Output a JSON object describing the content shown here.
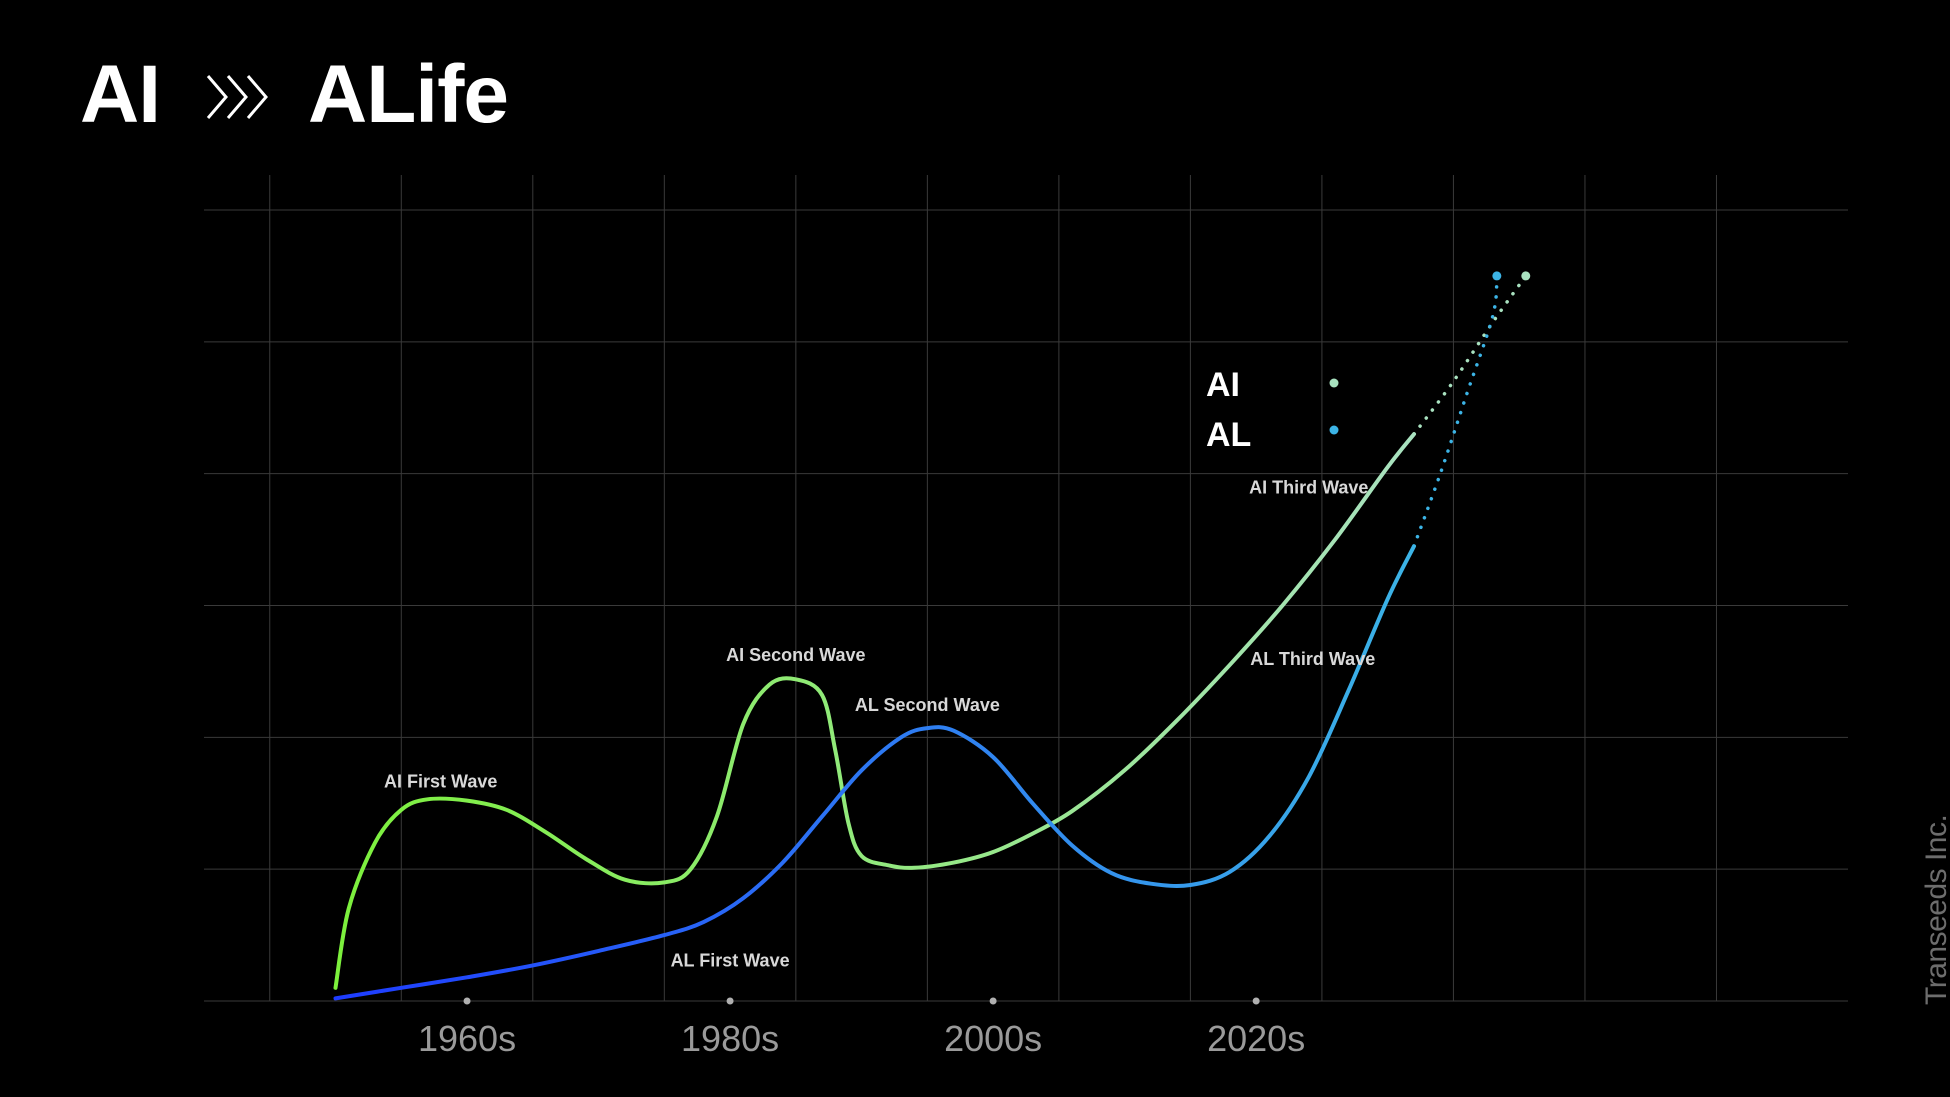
{
  "title": {
    "left": "AI",
    "right": "ALife"
  },
  "brand": "Transeeds Inc.",
  "colors": {
    "background": "#000000",
    "grid": "#3a3a3a",
    "ai_start": "#7cf03c",
    "ai_end": "#a9e2c0",
    "al_start": "#1e3cff",
    "al_end": "#3cb4e6",
    "tick_text": "#9a9a9a",
    "label_text": "#d8d8d8"
  },
  "chart_data": {
    "type": "line",
    "xlabel": "",
    "ylabel": "",
    "xlim": [
      1940,
      2065
    ],
    "ylim": [
      0,
      6
    ],
    "grid": true,
    "y_tick_labels": false,
    "legend_position": "center-right",
    "x_ticks": [
      {
        "value": 1960,
        "label": "1960s"
      },
      {
        "value": 1980,
        "label": "1980s"
      },
      {
        "value": 2000,
        "label": "2000s"
      },
      {
        "value": 2020,
        "label": "2020s"
      }
    ],
    "series": [
      {
        "name": "AI",
        "solid_until": 2032,
        "points": [
          [
            1950,
            0.1
          ],
          [
            1951,
            0.7
          ],
          [
            1953,
            1.2
          ],
          [
            1955,
            1.45
          ],
          [
            1957,
            1.53
          ],
          [
            1960,
            1.52
          ],
          [
            1963,
            1.45
          ],
          [
            1966,
            1.28
          ],
          [
            1969,
            1.08
          ],
          [
            1972,
            0.92
          ],
          [
            1975,
            0.9
          ],
          [
            1977,
            1.0
          ],
          [
            1979,
            1.4
          ],
          [
            1981,
            2.1
          ],
          [
            1983,
            2.4
          ],
          [
            1985,
            2.44
          ],
          [
            1987,
            2.32
          ],
          [
            1988,
            1.9
          ],
          [
            1989,
            1.35
          ],
          [
            1990,
            1.1
          ],
          [
            1992,
            1.03
          ],
          [
            1994,
            1.01
          ],
          [
            1997,
            1.05
          ],
          [
            2000,
            1.13
          ],
          [
            2003,
            1.27
          ],
          [
            2006,
            1.44
          ],
          [
            2010,
            1.75
          ],
          [
            2014,
            2.13
          ],
          [
            2018,
            2.55
          ],
          [
            2022,
            3.0
          ],
          [
            2026,
            3.5
          ],
          [
            2030,
            4.05
          ],
          [
            2032,
            4.3
          ],
          [
            2035,
            4.7
          ],
          [
            2038,
            5.15
          ],
          [
            2040.5,
            5.5
          ]
        ]
      },
      {
        "name": "AL",
        "solid_until": 2032,
        "points": [
          [
            1950,
            0.02
          ],
          [
            1955,
            0.1
          ],
          [
            1960,
            0.18
          ],
          [
            1965,
            0.27
          ],
          [
            1970,
            0.38
          ],
          [
            1975,
            0.5
          ],
          [
            1978,
            0.6
          ],
          [
            1981,
            0.78
          ],
          [
            1984,
            1.05
          ],
          [
            1987,
            1.4
          ],
          [
            1990,
            1.75
          ],
          [
            1993,
            2.0
          ],
          [
            1995,
            2.07
          ],
          [
            1997,
            2.05
          ],
          [
            2000,
            1.85
          ],
          [
            2003,
            1.5
          ],
          [
            2006,
            1.18
          ],
          [
            2009,
            0.97
          ],
          [
            2012,
            0.89
          ],
          [
            2015,
            0.88
          ],
          [
            2018,
            0.98
          ],
          [
            2021,
            1.25
          ],
          [
            2024,
            1.7
          ],
          [
            2027,
            2.35
          ],
          [
            2030,
            3.05
          ],
          [
            2032,
            3.45
          ],
          [
            2034,
            4.0
          ],
          [
            2036,
            4.6
          ],
          [
            2038,
            5.2
          ],
          [
            2038.3,
            5.5
          ]
        ]
      }
    ],
    "annotations": [
      {
        "text": "AI First Wave",
        "x": 1958,
        "y": 1.62
      },
      {
        "text": "AI Second Wave",
        "x": 1985,
        "y": 2.58
      },
      {
        "text": "AL Second Wave",
        "x": 1995,
        "y": 2.2
      },
      {
        "text": "AL First Wave",
        "x": 1980,
        "y": 0.26
      },
      {
        "text": "AI Third Wave",
        "x": 2024,
        "y": 3.85
      },
      {
        "text": "AL Third Wave",
        "x": 2024.3,
        "y": 2.55
      }
    ]
  }
}
